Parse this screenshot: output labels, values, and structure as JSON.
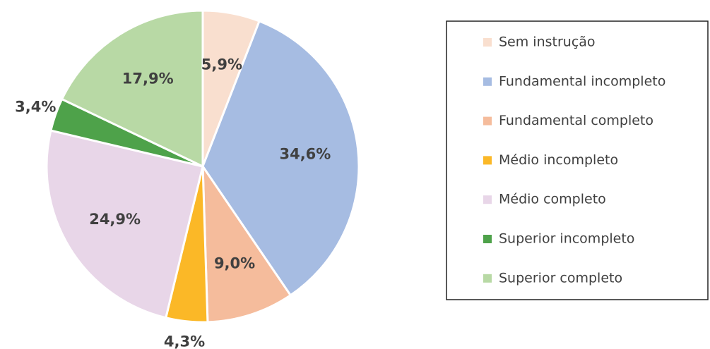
{
  "chart_data": {
    "type": "pie",
    "categories": [
      "Sem instrução",
      "Fundamental incompleto",
      "Fundamental completo",
      "Médio incompleto",
      "Médio completo",
      "Superior incompleto",
      "Superior completo"
    ],
    "values": [
      5.9,
      34.6,
      9.0,
      4.3,
      24.9,
      3.4,
      17.9
    ],
    "value_labels": [
      "5,9%",
      "34,6%",
      "9,0%",
      "4,3%",
      "24,9%",
      "3,4%",
      "17,9%"
    ],
    "colors": [
      "#f9dfcf",
      "#a6bce2",
      "#f5bc9c",
      "#fbb827",
      "#e8d6e8",
      "#4ea24a",
      "#b8d9a5"
    ],
    "legend": "right"
  }
}
